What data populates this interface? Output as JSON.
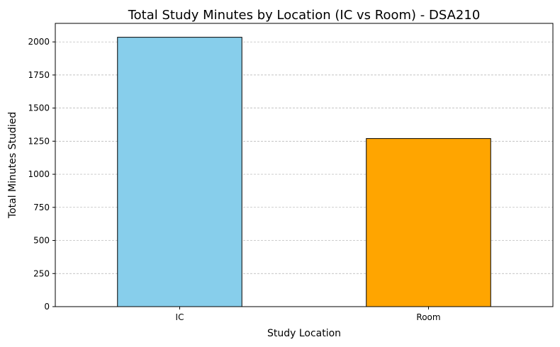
{
  "chart_data": {
    "type": "bar",
    "title": "Total Study Minutes by Location (IC vs Room) - DSA210",
    "xlabel": "Study Location",
    "ylabel": "Total Minutes Studied",
    "categories": [
      "IC",
      "Room"
    ],
    "values": [
      2035,
      1270
    ],
    "colors": [
      "#87CEEB",
      "#FFA500"
    ],
    "edge_color": "#000000",
    "ylim": [
      0,
      2140
    ],
    "yticks": [
      0,
      250,
      500,
      750,
      1000,
      1250,
      1500,
      1750,
      2000
    ],
    "grid": "y-dashed",
    "legend": "none"
  }
}
